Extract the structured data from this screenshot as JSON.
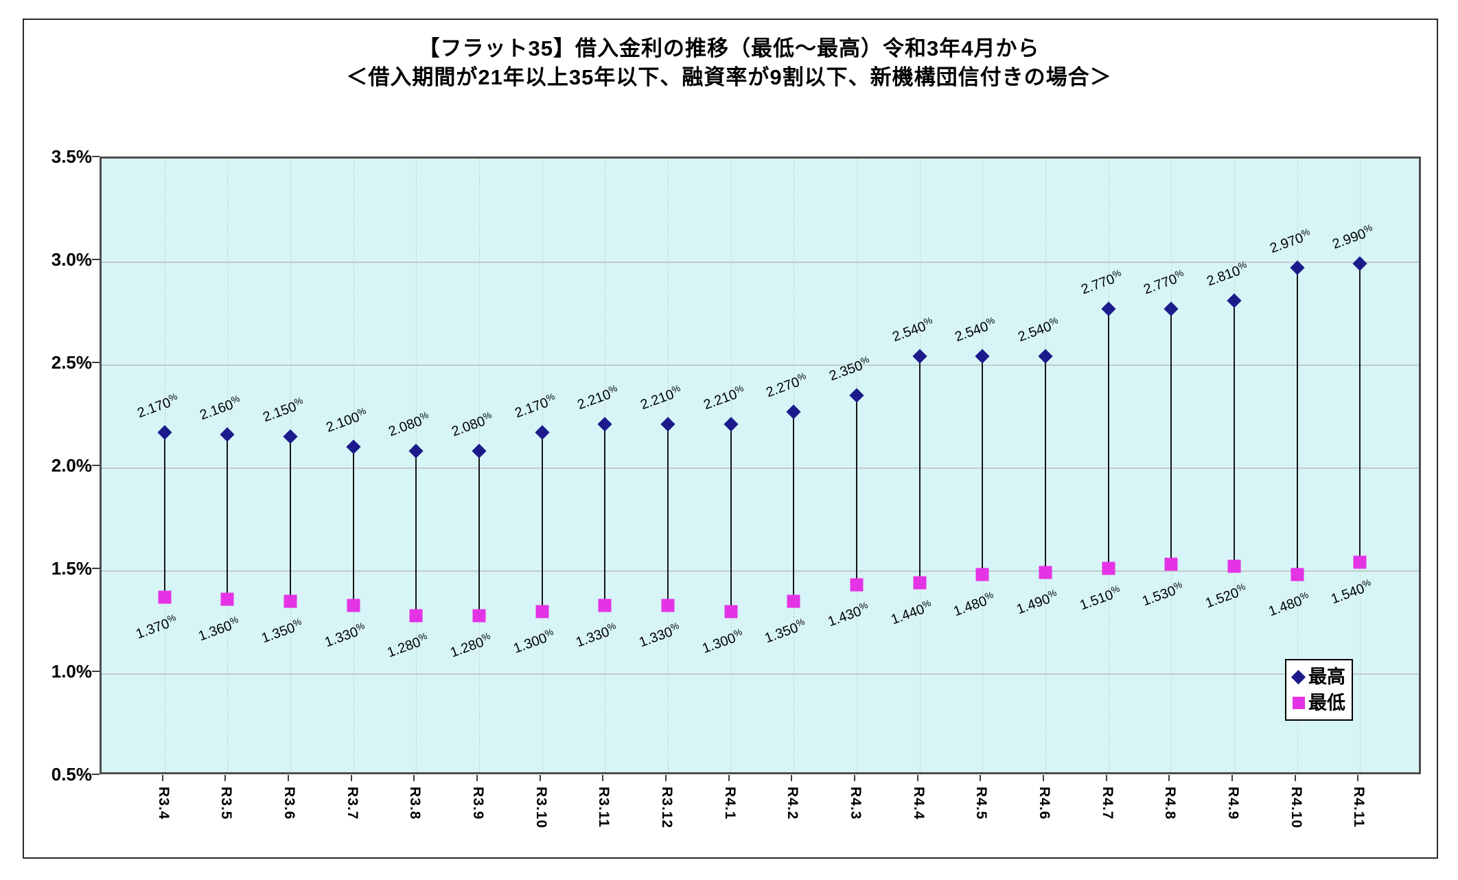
{
  "title": {
    "line1": "【フラット35】借入金利の推移（最低～最高）令和3年4月から",
    "line2": "＜借入期間が21年以上35年以下、融資率が9割以下、新機構団信付きの場合＞"
  },
  "legend": {
    "max_label": "最高",
    "min_label": "最低"
  },
  "colors": {
    "max_series": "#1b1b8c",
    "min_series": "#e433e4",
    "plot_background": "#D7F5F6",
    "gridline": "#c2caca",
    "hilo_line": "#141414"
  },
  "y_axis": {
    "tick_labels": [
      "3.5%",
      "3.0%",
      "2.5%",
      "2.0%",
      "1.5%",
      "1.0%",
      "0.5%"
    ],
    "max": 3.5,
    "min": 0.5,
    "step": 0.5
  },
  "chart_data": {
    "type": "scatter",
    "subtype": "high-low-range",
    "title": "【フラット35】借入金利の推移（最低～最高）令和3年4月から",
    "subtitle": "＜借入期間が21年以上35年以下、融資率が9割以下、新機構団信付きの場合＞",
    "xlabel": "",
    "ylabel": "",
    "ylim": [
      0.5,
      3.5
    ],
    "grid": true,
    "legend_position": "bottom-right-inside",
    "value_suffix": "%",
    "categories": [
      "R3.4",
      "R3.5",
      "R3.6",
      "R3.7",
      "R3.8",
      "R3.9",
      "R3.10",
      "R3.11",
      "R3.12",
      "R4.1",
      "R4.2",
      "R4.3",
      "R4.4",
      "R4.5",
      "R4.6",
      "R4.7",
      "R4.8",
      "R4.9",
      "R4.10",
      "R4.11"
    ],
    "series": [
      {
        "name": "最高",
        "marker": "diamond",
        "color": "#1b1b8c",
        "values": [
          2.17,
          2.16,
          2.15,
          2.1,
          2.08,
          2.08,
          2.17,
          2.21,
          2.21,
          2.21,
          2.27,
          2.35,
          2.54,
          2.54,
          2.54,
          2.77,
          2.77,
          2.81,
          2.97,
          2.99
        ]
      },
      {
        "name": "最低",
        "marker": "square",
        "color": "#e433e4",
        "values": [
          1.37,
          1.36,
          1.35,
          1.33,
          1.28,
          1.28,
          1.3,
          1.33,
          1.33,
          1.3,
          1.35,
          1.43,
          1.44,
          1.48,
          1.49,
          1.51,
          1.53,
          1.52,
          1.48,
          1.54
        ]
      }
    ]
  }
}
